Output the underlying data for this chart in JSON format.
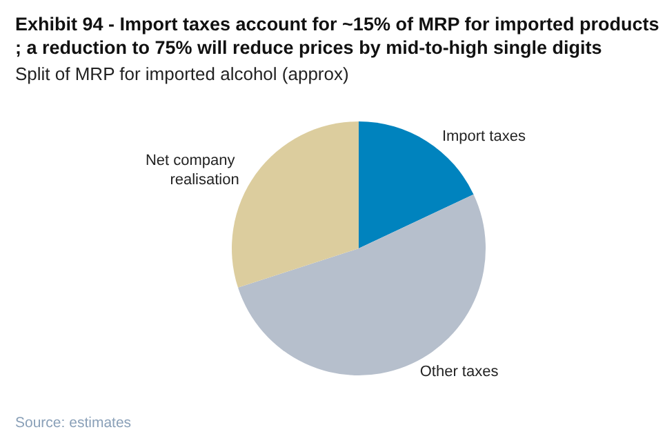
{
  "chart_data": {
    "type": "pie",
    "title": "Exhibit 94 - Import taxes account for ~15% of MRP for imported products; a reduction to 75% will reduce prices by mid-to-high single digits",
    "subtitle": "Split of MRP for imported alcohol (approx)",
    "categories": [
      "Import taxes",
      "Other taxes",
      "Net company realisation"
    ],
    "values": [
      18,
      52,
      30
    ],
    "colors": [
      "#0083be",
      "#b6bfcc",
      "#dccd9e"
    ],
    "annotations": [
      "Source: estimates"
    ]
  }
}
